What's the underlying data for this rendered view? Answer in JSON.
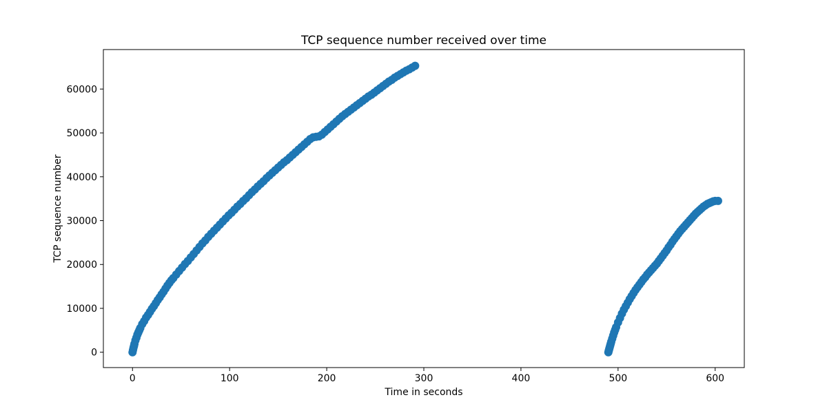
{
  "chart_data": {
    "type": "scatter",
    "title": "TCP sequence number received over time",
    "xlabel": "Time in seconds",
    "ylabel": "TCP sequence number",
    "xlim": [
      -30,
      630
    ],
    "ylim": [
      -3500,
      69000
    ],
    "xticks": [
      0,
      100,
      200,
      300,
      400,
      500,
      600
    ],
    "yticks": [
      0,
      10000,
      20000,
      30000,
      40000,
      50000,
      60000
    ],
    "grid": false,
    "legend": "none",
    "marker_color": "#1f77b4",
    "series": [
      {
        "points": [
          [
            0,
            0
          ],
          [
            0.5,
            500
          ],
          [
            1,
            1000
          ],
          [
            1.5,
            1400
          ],
          [
            2,
            1900
          ],
          [
            3,
            2700
          ],
          [
            4,
            3300
          ],
          [
            5,
            4000
          ],
          [
            6,
            4500
          ],
          [
            7,
            5000
          ],
          [
            8,
            5500
          ],
          [
            10,
            6400
          ],
          [
            12,
            7100
          ],
          [
            14,
            7900
          ],
          [
            16,
            8500
          ],
          [
            18,
            9200
          ],
          [
            20,
            9900
          ],
          [
            22,
            10500
          ],
          [
            24,
            11200
          ],
          [
            26,
            11900
          ],
          [
            28,
            12500
          ],
          [
            30,
            13200
          ],
          [
            32,
            13800
          ],
          [
            34,
            14500
          ],
          [
            36,
            15200
          ],
          [
            38,
            15800
          ],
          [
            40,
            16400
          ],
          [
            42,
            16900
          ],
          [
            45,
            17700
          ],
          [
            48,
            18500
          ],
          [
            51,
            19300
          ],
          [
            54,
            20100
          ],
          [
            57,
            20800
          ],
          [
            60,
            21600
          ],
          [
            63,
            22400
          ],
          [
            66,
            23200
          ],
          [
            69,
            24000
          ],
          [
            72,
            24800
          ],
          [
            75,
            25500
          ],
          [
            78,
            26300
          ],
          [
            81,
            27000
          ],
          [
            84,
            27700
          ],
          [
            87,
            28400
          ],
          [
            90,
            29100
          ],
          [
            93,
            29800
          ],
          [
            96,
            30500
          ],
          [
            99,
            31200
          ],
          [
            102,
            31800
          ],
          [
            105,
            32500
          ],
          [
            108,
            33200
          ],
          [
            111,
            33800
          ],
          [
            114,
            34500
          ],
          [
            117,
            35100
          ],
          [
            120,
            35800
          ],
          [
            123,
            36500
          ],
          [
            126,
            37100
          ],
          [
            129,
            37800
          ],
          [
            132,
            38400
          ],
          [
            135,
            39000
          ],
          [
            138,
            39700
          ],
          [
            141,
            40300
          ],
          [
            144,
            40900
          ],
          [
            147,
            41500
          ],
          [
            150,
            42100
          ],
          [
            153,
            42700
          ],
          [
            156,
            43300
          ],
          [
            159,
            43800
          ],
          [
            162,
            44400
          ],
          [
            165,
            45000
          ],
          [
            168,
            45600
          ],
          [
            171,
            46200
          ],
          [
            174,
            46800
          ],
          [
            177,
            47400
          ],
          [
            180,
            48000
          ],
          [
            183,
            48600
          ],
          [
            186,
            49000
          ],
          [
            189,
            49100
          ],
          [
            192,
            49200
          ],
          [
            195,
            49600
          ],
          [
            198,
            50200
          ],
          [
            201,
            50800
          ],
          [
            204,
            51400
          ],
          [
            207,
            52000
          ],
          [
            210,
            52600
          ],
          [
            213,
            53200
          ],
          [
            216,
            53800
          ],
          [
            219,
            54300
          ],
          [
            222,
            54800
          ],
          [
            225,
            55300
          ],
          [
            228,
            55800
          ],
          [
            231,
            56300
          ],
          [
            234,
            56800
          ],
          [
            237,
            57300
          ],
          [
            240,
            57800
          ],
          [
            243,
            58300
          ],
          [
            246,
            58700
          ],
          [
            249,
            59200
          ],
          [
            252,
            59700
          ],
          [
            255,
            60200
          ],
          [
            258,
            60700
          ],
          [
            261,
            61200
          ],
          [
            264,
            61700
          ],
          [
            267,
            62100
          ],
          [
            270,
            62600
          ],
          [
            273,
            63000
          ],
          [
            276,
            63400
          ],
          [
            279,
            63800
          ],
          [
            282,
            64200
          ],
          [
            285,
            64500
          ],
          [
            288,
            64900
          ],
          [
            291,
            65300
          ],
          [
            490,
            0
          ],
          [
            490.5,
            400
          ],
          [
            491,
            800
          ],
          [
            491.5,
            1200
          ],
          [
            492,
            1600
          ],
          [
            492.5,
            2000
          ],
          [
            493,
            2400
          ],
          [
            494,
            3100
          ],
          [
            495,
            3800
          ],
          [
            496,
            4500
          ],
          [
            497,
            5100
          ],
          [
            498,
            5700
          ],
          [
            500,
            6800
          ],
          [
            502,
            7800
          ],
          [
            504,
            8800
          ],
          [
            506,
            9700
          ],
          [
            508,
            10500
          ],
          [
            510,
            11300
          ],
          [
            512,
            12100
          ],
          [
            514,
            12800
          ],
          [
            516,
            13500
          ],
          [
            518,
            14200
          ],
          [
            520,
            14800
          ],
          [
            522,
            15400
          ],
          [
            524,
            16000
          ],
          [
            526,
            16600
          ],
          [
            528,
            17100
          ],
          [
            530,
            17700
          ],
          [
            532,
            18200
          ],
          [
            534,
            18700
          ],
          [
            536,
            19200
          ],
          [
            538,
            19700
          ],
          [
            540,
            20200
          ],
          [
            542,
            20800
          ],
          [
            544,
            21400
          ],
          [
            546,
            22000
          ],
          [
            548,
            22600
          ],
          [
            550,
            23200
          ],
          [
            552,
            23900
          ],
          [
            554,
            24500
          ],
          [
            556,
            25200
          ],
          [
            558,
            25800
          ],
          [
            560,
            26400
          ],
          [
            562,
            27000
          ],
          [
            564,
            27600
          ],
          [
            566,
            28100
          ],
          [
            568,
            28600
          ],
          [
            570,
            29100
          ],
          [
            572,
            29600
          ],
          [
            574,
            30100
          ],
          [
            576,
            30600
          ],
          [
            578,
            31100
          ],
          [
            580,
            31600
          ],
          [
            582,
            32000
          ],
          [
            584,
            32400
          ],
          [
            586,
            32800
          ],
          [
            588,
            33200
          ],
          [
            590,
            33500
          ],
          [
            592,
            33800
          ],
          [
            594,
            34000
          ],
          [
            596,
            34200
          ],
          [
            598,
            34400
          ],
          [
            600,
            34500
          ],
          [
            603,
            34500
          ]
        ]
      }
    ]
  }
}
